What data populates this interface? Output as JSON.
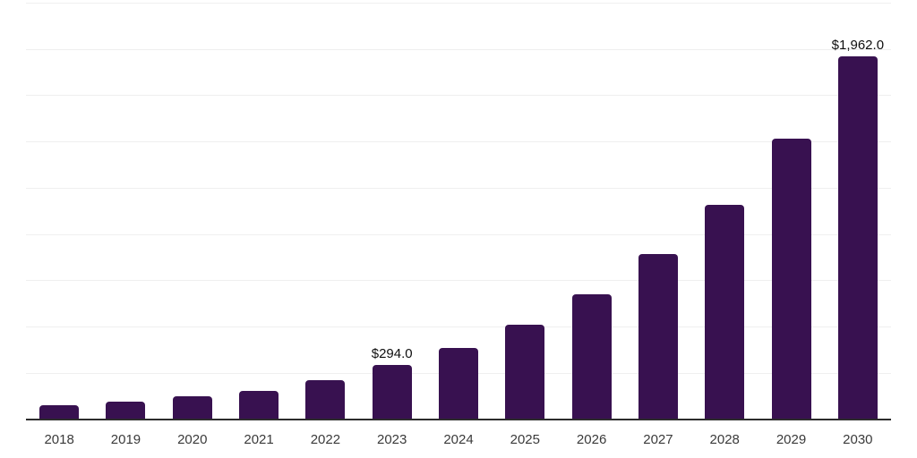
{
  "chart_data": {
    "type": "bar",
    "title": "",
    "xlabel": "",
    "ylabel": "",
    "categories": [
      "2018",
      "2019",
      "2020",
      "2021",
      "2022",
      "2023",
      "2024",
      "2025",
      "2026",
      "2027",
      "2028",
      "2029",
      "2030"
    ],
    "values": [
      74,
      95,
      121,
      152,
      209,
      294,
      386,
      510,
      672,
      890,
      1158,
      1515,
      1962
    ],
    "data_labels": {
      "2023": "$294.0",
      "2030": "$1,962.0"
    },
    "ylim": [
      0,
      2250
    ],
    "gridline_step": 250,
    "grid": true,
    "legend_position": "none",
    "y_axis_tick_labels_visible": false,
    "bar_color": "#381150",
    "axis_line_color": "#2d2d2d",
    "gridline_color": "#efefef",
    "tick_label_color": "#3a3a3a",
    "data_label_color": "#0f0f0f"
  }
}
